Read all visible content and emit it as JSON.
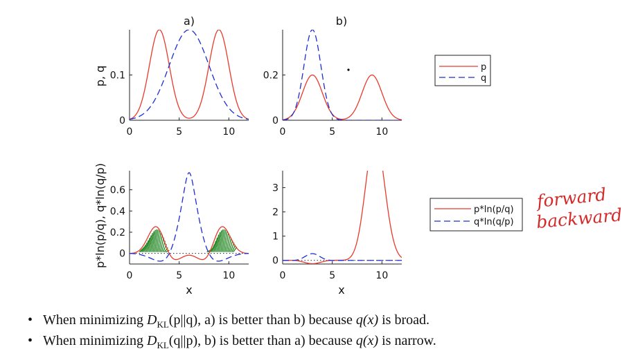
{
  "chart_data": [
    {
      "type": "line",
      "panel_label": "a)",
      "ylabel": "p, q",
      "xlabel": "",
      "xlim": [
        0,
        12
      ],
      "ylim": [
        0,
        0.2
      ],
      "xticks": [
        "0",
        "5",
        "10"
      ],
      "xtick_values": [
        0,
        5,
        10
      ],
      "yticks": [
        "0",
        "0.1"
      ],
      "ytick_values": [
        0,
        0.1
      ],
      "series": [
        {
          "name": "p",
          "color": "#e8392b",
          "style": "solid",
          "gauss": [
            {
              "mu": 3,
              "sigma": 1,
              "amp": 0.2
            },
            {
              "mu": 9,
              "sigma": 1,
              "amp": 0.2
            }
          ]
        },
        {
          "name": "q",
          "color": "#1c2bd6",
          "style": "dashed",
          "gauss": [
            {
              "mu": 6,
              "sigma": 2,
              "amp": 0.2
            }
          ]
        }
      ]
    },
    {
      "type": "line",
      "panel_label": "b)",
      "ylabel": "",
      "xlabel": "",
      "xlim": [
        0,
        12
      ],
      "ylim": [
        0,
        0.4
      ],
      "xticks": [
        "0",
        "5",
        "10"
      ],
      "xtick_values": [
        0,
        5,
        10
      ],
      "yticks": [
        "0",
        "0.2"
      ],
      "ytick_values": [
        0,
        0.2
      ],
      "series": [
        {
          "name": "p",
          "color": "#e8392b",
          "style": "solid",
          "gauss": [
            {
              "mu": 3,
              "sigma": 1,
              "amp": 0.2
            },
            {
              "mu": 9,
              "sigma": 1,
              "amp": 0.2
            }
          ]
        },
        {
          "name": "q",
          "color": "#1c2bd6",
          "style": "dashed",
          "gauss": [
            {
              "mu": 3,
              "sigma": 0.85,
              "amp": 0.4
            }
          ]
        }
      ]
    },
    {
      "type": "line",
      "panel_label": "",
      "ylabel": "p*ln(p/q), q*ln(q/p)",
      "xlabel": "x",
      "xlim": [
        0,
        12
      ],
      "ylim": [
        -0.1,
        0.78
      ],
      "xticks": [
        "0",
        "5",
        "10"
      ],
      "xtick_values": [
        0,
        5,
        10
      ],
      "yticks": [
        "0",
        "0.2",
        "0.4",
        "0.6"
      ],
      "ytick_values": [
        0,
        0.2,
        0.4,
        0.6
      ],
      "zero_line": true,
      "series": [
        {
          "name": "p*ln(p/q)",
          "color": "#e8392b",
          "style": "solid",
          "pfrom": 0,
          "kind": "pln"
        },
        {
          "name": "q*ln(q/p)",
          "color": "#1c2bd6",
          "style": "dashed",
          "pfrom": 0,
          "kind": "qln"
        }
      ],
      "hatch_regions": [
        [
          1.2,
          4.0
        ],
        [
          8.0,
          10.8
        ]
      ]
    },
    {
      "type": "line",
      "panel_label": "",
      "ylabel": "",
      "xlabel": "x",
      "xlim": [
        0,
        12
      ],
      "ylim": [
        -0.15,
        3.7
      ],
      "xticks": [
        "0",
        "5",
        "10"
      ],
      "xtick_values": [
        0,
        5,
        10
      ],
      "yticks": [
        "0",
        "1",
        "2",
        "3"
      ],
      "ytick_values": [
        0,
        1,
        2,
        3
      ],
      "zero_line": true,
      "series": [
        {
          "name": "p*ln(p/q)",
          "color": "#e8392b",
          "style": "solid",
          "pfrom": 1,
          "kind": "pln"
        },
        {
          "name": "q*ln(q/p)",
          "color": "#1c2bd6",
          "style": "dashed",
          "pfrom": 1,
          "kind": "qln"
        }
      ]
    }
  ],
  "legend_top": {
    "entries": [
      "p",
      "q"
    ]
  },
  "legend_bottom": {
    "entries": [
      "p*ln(p/q)",
      "q*ln(q/p)"
    ]
  },
  "annotation": {
    "line1": "forward",
    "line2": "backward"
  },
  "bullets": {
    "b1": {
      "pre": "When minimizing ",
      "d": "D",
      "sub": "KL",
      "mid": "(p||q), a) is better than b) because ",
      "q": "q(x)",
      "post": " is broad."
    },
    "b2": {
      "pre": "When minimizing ",
      "d": "D",
      "sub": "KL",
      "mid": "(q||p), b) is better than a) because ",
      "q": "q(x)",
      "post": " is narrow."
    }
  }
}
